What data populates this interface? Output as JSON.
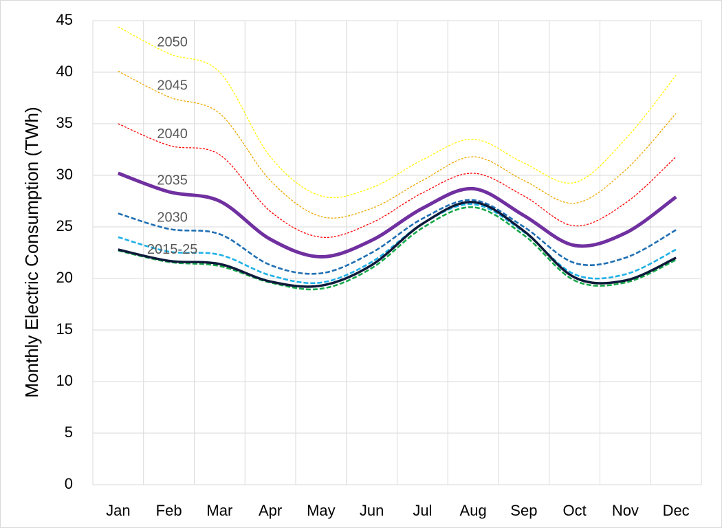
{
  "chart_data": {
    "type": "line",
    "y_label": "Monthly Electric Consumption (TWh)",
    "categories": [
      "Jan",
      "Feb",
      "Mar",
      "Apr",
      "May",
      "Jun",
      "Jul",
      "Aug",
      "Sep",
      "Oct",
      "Nov",
      "Dec"
    ],
    "ylim": [
      0,
      45
    ],
    "yticks": [
      0,
      5,
      10,
      15,
      20,
      25,
      30,
      35,
      40,
      45
    ],
    "grid": true,
    "series": [
      {
        "name": "2050",
        "color": "#ffff00",
        "line_style": "dotted",
        "values": [
          44.4,
          41.8,
          40,
          31.8,
          28,
          28.8,
          31.5,
          33.5,
          31.2,
          29.3,
          33.5,
          39.7
        ]
      },
      {
        "name": "2045",
        "color": "#f0a800",
        "line_style": "dotted",
        "values": [
          40.1,
          37.6,
          36,
          29.5,
          26,
          26.8,
          29.5,
          31.8,
          29.5,
          27.3,
          30.5,
          36
        ]
      },
      {
        "name": "2040",
        "color": "#ff0000",
        "line_style": "dotted",
        "values": [
          35,
          32.9,
          32,
          26.5,
          24,
          25.4,
          28.3,
          30.2,
          28,
          25.1,
          27.3,
          31.8
        ]
      },
      {
        "name": "2035",
        "color": "#7030a0",
        "line_style": "thick",
        "values": [
          30.2,
          28.4,
          27.5,
          23.8,
          22.1,
          23.7,
          26.8,
          28.7,
          26.1,
          23.2,
          24.4,
          27.9
        ]
      },
      {
        "name": "2030",
        "color": "#1f6fb4",
        "line_style": "dashed",
        "values": [
          26.3,
          24.8,
          24.3,
          21.3,
          20.5,
          22.5,
          25.8,
          27.6,
          25,
          21.5,
          22,
          24.7
        ]
      },
      {
        "color": "#1fb0e8",
        "line_style": "dashed",
        "values": [
          24,
          22.6,
          22.3,
          20.3,
          19.6,
          21.6,
          25.3,
          27.2,
          24.5,
          20.4,
          20.4,
          22.8
        ]
      },
      {
        "color": "#17a84a",
        "line_style": "dashed",
        "values": [
          22.7,
          21.6,
          21.2,
          19.6,
          19,
          21,
          24.9,
          26.9,
          24.2,
          19.8,
          19.6,
          21.8
        ]
      },
      {
        "name": "2015-25",
        "color": "#0d1a3a",
        "line_style": "solid",
        "values": [
          22.8,
          21.7,
          21.4,
          19.7,
          19.3,
          21.3,
          25.3,
          27.4,
          24.6,
          20.1,
          19.8,
          22
        ]
      }
    ]
  }
}
